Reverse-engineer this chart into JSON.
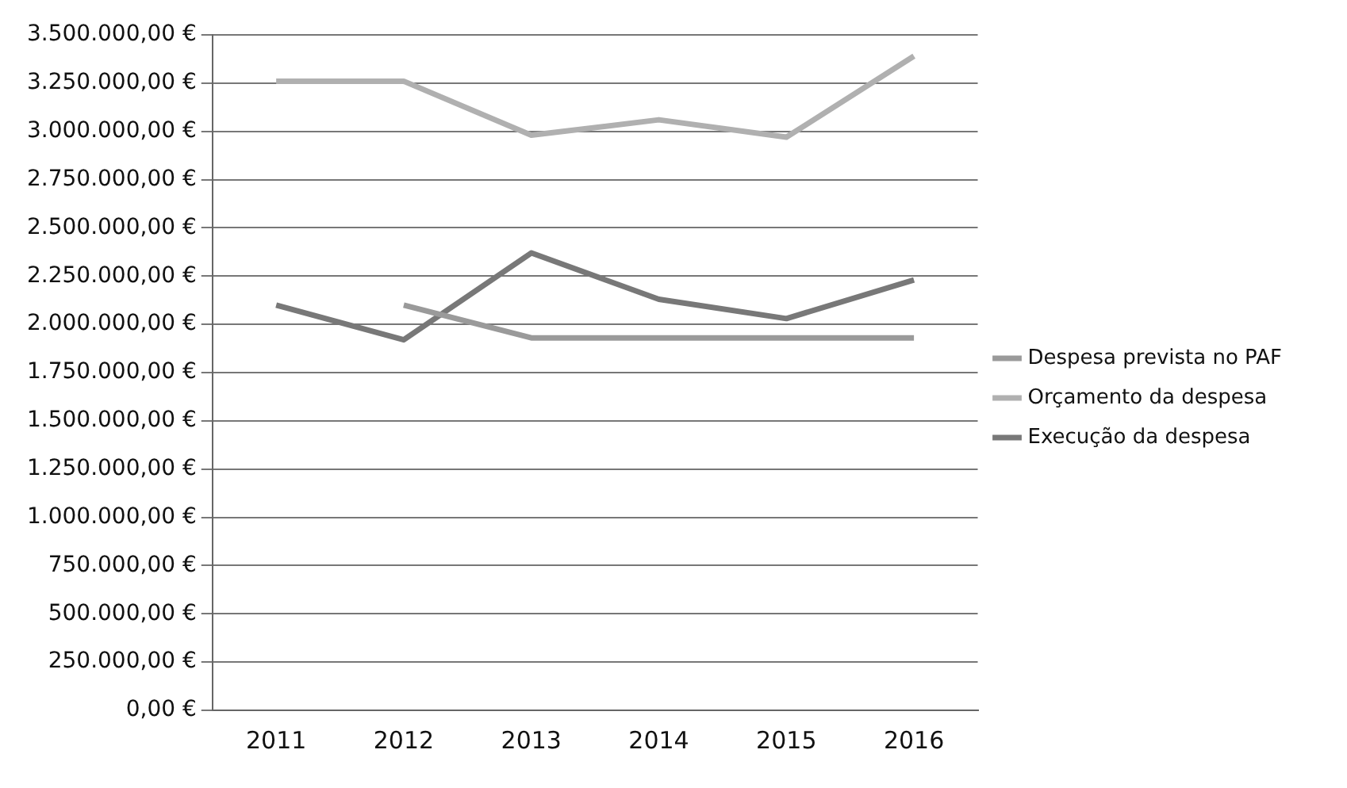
{
  "chart_data": {
    "type": "line",
    "categories": [
      "2011",
      "2012",
      "2013",
      "2014",
      "2015",
      "2016"
    ],
    "series": [
      {
        "name": "Despesa prevista no PAF",
        "color": "#9a9a9a",
        "values": [
          null,
          2100000,
          1930000,
          1930000,
          1930000,
          1930000
        ]
      },
      {
        "name": "Orçamento da despesa",
        "color": "#b0b0b0",
        "values": [
          3260000,
          3260000,
          2980000,
          3060000,
          2970000,
          3390000
        ]
      },
      {
        "name": "Execução da despesa",
        "color": "#787878",
        "values": [
          2100000,
          1920000,
          2370000,
          2130000,
          2030000,
          2230000
        ]
      }
    ],
    "ylim": [
      0,
      3500000
    ],
    "yticks": [
      {
        "value": 0,
        "label": "0,00 €"
      },
      {
        "value": 250000,
        "label": "250.000,00 €"
      },
      {
        "value": 500000,
        "label": "500.000,00 €"
      },
      {
        "value": 750000,
        "label": "750.000,00 €"
      },
      {
        "value": 1000000,
        "label": "1.000.000,00 €"
      },
      {
        "value": 1250000,
        "label": "1.250.000,00 €"
      },
      {
        "value": 1500000,
        "label": "1.500.000,00 €"
      },
      {
        "value": 1750000,
        "label": "1.750.000,00 €"
      },
      {
        "value": 2000000,
        "label": "2.000.000,00 €"
      },
      {
        "value": 2250000,
        "label": "2.250.000,00 €"
      },
      {
        "value": 2500000,
        "label": "2.500.000,00 €"
      },
      {
        "value": 2750000,
        "label": "2.750.000,00 €"
      },
      {
        "value": 3000000,
        "label": "3.000.000,00 €"
      },
      {
        "value": 3250000,
        "label": "3.250.000,00 €"
      },
      {
        "value": 3500000,
        "label": "3.500.000,00 €"
      }
    ],
    "grid": "y",
    "legend": "right",
    "marker": "none",
    "line_style": "solid"
  }
}
